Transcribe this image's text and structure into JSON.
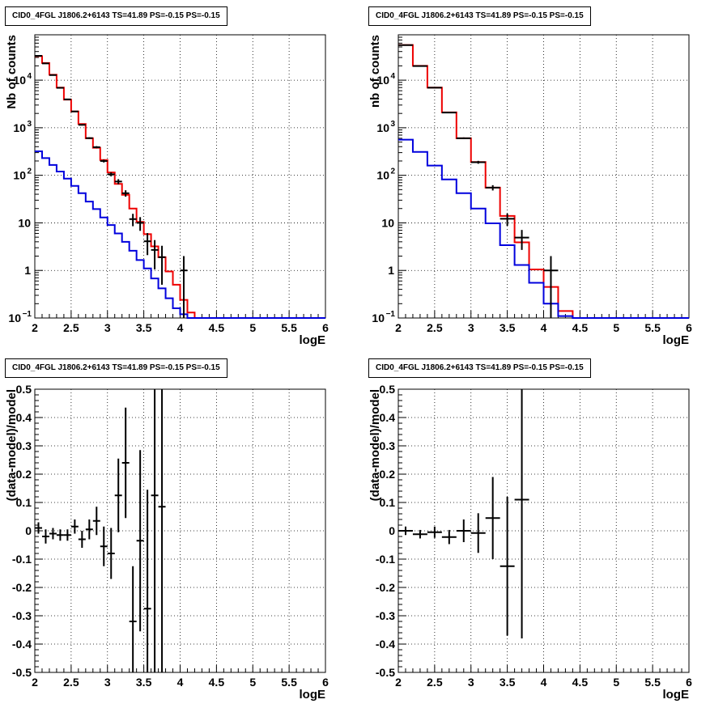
{
  "chart_data": [
    {
      "type": "line",
      "title": "CID0_4FGL J1806.2+6143 TS=41.89 PS=-0.15 PS=-0.15",
      "xlabel": "logE",
      "ylabel": "Nb of counts",
      "xlim": [
        2,
        6
      ],
      "ylim": [
        0.1,
        90000
      ],
      "yscale": "log",
      "grid": true,
      "x_ticks": [
        "2",
        "2.5",
        "3",
        "3.5",
        "4",
        "4.5",
        "5",
        "5.5",
        "6"
      ],
      "y_ticks": [
        "10^-1",
        "1",
        "10",
        "10^2",
        "10^3",
        "10^4"
      ],
      "bin_edges": [
        2.0,
        2.1,
        2.2,
        2.3,
        2.4,
        2.5,
        2.6,
        2.7,
        2.8,
        2.9,
        3.0,
        3.1,
        3.2,
        3.3,
        3.4,
        3.5,
        3.6,
        3.7,
        3.8,
        3.9,
        4.0,
        4.1,
        4.2,
        4.3,
        4.4,
        4.5,
        4.6,
        4.7,
        4.8,
        4.9,
        5.0,
        5.1,
        5.2,
        5.3,
        5.4,
        5.5,
        5.6,
        5.7,
        5.8,
        5.9,
        6.0
      ],
      "series": [
        {
          "color": "#ee0000",
          "values": [
            32000,
            23000,
            13000,
            7000,
            3900,
            2200,
            1200,
            600,
            380,
            210,
            115,
            66,
            39,
            20,
            10.5,
            5.8,
            3.2,
            1.9,
            0.95,
            0.5,
            0.24,
            0.13,
            0.1,
            0.1,
            0.1,
            0.1,
            0.1,
            0.1,
            0.1,
            0.1,
            0.1,
            0.1,
            0.1,
            0.1,
            0.1,
            0.1,
            0.1,
            0.1,
            0.1,
            0.1
          ]
        },
        {
          "color": "#0000dd",
          "values": [
            320,
            230,
            165,
            120,
            85,
            60,
            42,
            28,
            19.5,
            13,
            9,
            6,
            4,
            2.6,
            1.65,
            1.1,
            0.68,
            0.42,
            0.26,
            0.16,
            0.12,
            0.1,
            0.1,
            0.1,
            0.1,
            0.1,
            0.1,
            0.1,
            0.1,
            0.1,
            0.1,
            0.1,
            0.1,
            0.1,
            0.1,
            0.1,
            0.1,
            0.1,
            0.1,
            0.1
          ]
        }
      ],
      "points": [
        {
          "x": 2.05,
          "y": 32500,
          "lo": 32300,
          "hi": 32700
        },
        {
          "x": 2.15,
          "y": 22500,
          "lo": 22300,
          "hi": 22700
        },
        {
          "x": 2.25,
          "y": 12800,
          "lo": 12600,
          "hi": 13000
        },
        {
          "x": 2.35,
          "y": 6900,
          "lo": 6800,
          "hi": 7000
        },
        {
          "x": 2.45,
          "y": 3950,
          "lo": 3880,
          "hi": 4020
        },
        {
          "x": 2.55,
          "y": 2200,
          "lo": 2150,
          "hi": 2250
        },
        {
          "x": 2.65,
          "y": 1150,
          "lo": 1115,
          "hi": 1185
        },
        {
          "x": 2.75,
          "y": 605,
          "lo": 580,
          "hi": 630
        },
        {
          "x": 2.85,
          "y": 390,
          "lo": 370,
          "hi": 410
        },
        {
          "x": 2.95,
          "y": 200,
          "lo": 186,
          "hi": 214
        },
        {
          "x": 3.05,
          "y": 105,
          "lo": 95,
          "hi": 115
        },
        {
          "x": 3.15,
          "y": 74,
          "lo": 65,
          "hi": 83
        },
        {
          "x": 3.25,
          "y": 42,
          "lo": 35.5,
          "hi": 48.5
        },
        {
          "x": 3.35,
          "y": 12,
          "lo": 8.5,
          "hi": 15.5
        },
        {
          "x": 3.45,
          "y": 10,
          "lo": 6.8,
          "hi": 13.2
        },
        {
          "x": 3.55,
          "y": 4.1,
          "lo": 2.1,
          "hi": 6.1
        },
        {
          "x": 3.65,
          "y": 2.7,
          "lo": 1.05,
          "hi": 4.35
        },
        {
          "x": 3.75,
          "y": 1.9,
          "lo": 0.5,
          "hi": 3.3
        },
        {
          "x": 4.05,
          "y": 1.0,
          "lo": 0.05,
          "hi": 2.0
        }
      ]
    },
    {
      "type": "line",
      "title": "CID0_4FGL J1806.2+6143 TS=41.89 PS=-0.15 PS=-0.15",
      "xlabel": "logE",
      "ylabel": "nb of counts",
      "xlim": [
        2,
        6
      ],
      "ylim": [
        0.1,
        90000
      ],
      "yscale": "log",
      "grid": true,
      "x_ticks": [
        "2",
        "2.5",
        "3",
        "3.5",
        "4",
        "4.5",
        "5",
        "5.5",
        "6"
      ],
      "y_ticks": [
        "10^-1",
        "1",
        "10",
        "10^2",
        "10^3",
        "10^4"
      ],
      "bin_edges": [
        2.0,
        2.2,
        2.4,
        2.6,
        2.8,
        3.0,
        3.2,
        3.4,
        3.6,
        3.8,
        4.0,
        4.2,
        4.4,
        4.6,
        4.8,
        5.0,
        5.2,
        5.4,
        5.6,
        5.8,
        6.0
      ],
      "series": [
        {
          "color": "#ee0000",
          "values": [
            55000,
            20000,
            7000,
            2100,
            600,
            190,
            55,
            14,
            3.9,
            1.05,
            0.45,
            0.14,
            0.1,
            0.1,
            0.1,
            0.1,
            0.1,
            0.1,
            0.1,
            0.1
          ]
        },
        {
          "color": "#0000dd",
          "values": [
            560,
            310,
            160,
            82,
            42,
            20,
            9.8,
            3.4,
            1.3,
            0.55,
            0.2,
            0.11,
            0.1,
            0.1,
            0.1,
            0.1,
            0.1,
            0.1,
            0.1,
            0.1
          ]
        }
      ],
      "points": [
        {
          "x": 2.1,
          "y": 54500,
          "lo": 54200,
          "hi": 54800
        },
        {
          "x": 2.3,
          "y": 19800,
          "lo": 19600,
          "hi": 20000
        },
        {
          "x": 2.5,
          "y": 6950,
          "lo": 6850,
          "hi": 7050
        },
        {
          "x": 2.7,
          "y": 2080,
          "lo": 2030,
          "hi": 2130
        },
        {
          "x": 2.9,
          "y": 602,
          "lo": 578,
          "hi": 626
        },
        {
          "x": 3.1,
          "y": 188,
          "lo": 175,
          "hi": 201
        },
        {
          "x": 3.3,
          "y": 55,
          "lo": 48,
          "hi": 62
        },
        {
          "x": 3.5,
          "y": 12.2,
          "lo": 8.7,
          "hi": 15.7
        },
        {
          "x": 3.7,
          "y": 4.9,
          "lo": 2.7,
          "hi": 7.1
        },
        {
          "x": 4.1,
          "y": 1.0,
          "lo": 0.05,
          "hi": 2.0
        }
      ]
    },
    {
      "type": "scatter",
      "title": "CID0_4FGL J1806.2+6143 TS=41.89 PS=-0.15 PS=-0.15",
      "xlabel": "logE",
      "ylabel": "(data-model)/model",
      "xlim": [
        2,
        6
      ],
      "ylim": [
        -0.5,
        0.5
      ],
      "grid": true,
      "x_ticks": [
        "2",
        "2.5",
        "3",
        "3.5",
        "4",
        "4.5",
        "5",
        "5.5",
        "6"
      ],
      "y_ticks": [
        "-0.5",
        "-0.4",
        "-0.3",
        "-0.2",
        "-0.1",
        "0",
        "0.1",
        "0.2",
        "0.3",
        "0.4",
        "0.5"
      ],
      "bin_width": 0.1,
      "points": [
        {
          "x": 2.05,
          "y": 0.01,
          "err": 0.02
        },
        {
          "x": 2.15,
          "y": -0.02,
          "err": 0.025
        },
        {
          "x": 2.25,
          "y": -0.01,
          "err": 0.02
        },
        {
          "x": 2.35,
          "y": -0.015,
          "err": 0.02
        },
        {
          "x": 2.45,
          "y": -0.015,
          "err": 0.02
        },
        {
          "x": 2.55,
          "y": 0.015,
          "err": 0.025
        },
        {
          "x": 2.65,
          "y": -0.03,
          "err": 0.03
        },
        {
          "x": 2.75,
          "y": 0.005,
          "err": 0.035
        },
        {
          "x": 2.85,
          "y": 0.035,
          "err": 0.05
        },
        {
          "x": 2.95,
          "y": -0.055,
          "err": 0.07
        },
        {
          "x": 3.05,
          "y": -0.08,
          "err": 0.09
        },
        {
          "x": 3.15,
          "y": 0.125,
          "err": 0.13
        },
        {
          "x": 3.25,
          "y": 0.24,
          "err": 0.195
        },
        {
          "x": 3.35,
          "y": -0.32,
          "err": 0.195
        },
        {
          "x": 3.45,
          "y": -0.035,
          "err": 0.32
        },
        {
          "x": 3.55,
          "y": -0.275,
          "err": 0.42
        },
        {
          "x": 3.65,
          "y": 0.125,
          "err": 0.7
        },
        {
          "x": 3.75,
          "y": 0.085,
          "err": 0.75
        }
      ]
    },
    {
      "type": "scatter",
      "title": "CID0_4FGL J1806.2+6143 TS=41.89 PS=-0.15 PS=-0.15",
      "xlabel": "logE",
      "ylabel": "(data-model)/model",
      "xlim": [
        2,
        6
      ],
      "ylim": [
        -0.5,
        0.5
      ],
      "grid": true,
      "x_ticks": [
        "2",
        "2.5",
        "3",
        "3.5",
        "4",
        "4.5",
        "5",
        "5.5",
        "6"
      ],
      "y_ticks": [
        "-0.5",
        "-0.4",
        "-0.3",
        "-0.2",
        "-0.1",
        "0",
        "0.1",
        "0.2",
        "0.3",
        "0.4",
        "0.5"
      ],
      "bin_width": 0.2,
      "points": [
        {
          "x": 2.1,
          "y": 0.0,
          "err": 0.015
        },
        {
          "x": 2.3,
          "y": -0.012,
          "err": 0.015
        },
        {
          "x": 2.5,
          "y": -0.005,
          "err": 0.02
        },
        {
          "x": 2.7,
          "y": -0.022,
          "err": 0.025
        },
        {
          "x": 2.9,
          "y": 0.0,
          "err": 0.04
        },
        {
          "x": 3.1,
          "y": -0.008,
          "err": 0.07
        },
        {
          "x": 3.3,
          "y": 0.045,
          "err": 0.145
        },
        {
          "x": 3.5,
          "y": -0.125,
          "err": 0.245
        },
        {
          "x": 3.7,
          "y": 0.11,
          "err": 0.49
        }
      ]
    }
  ]
}
